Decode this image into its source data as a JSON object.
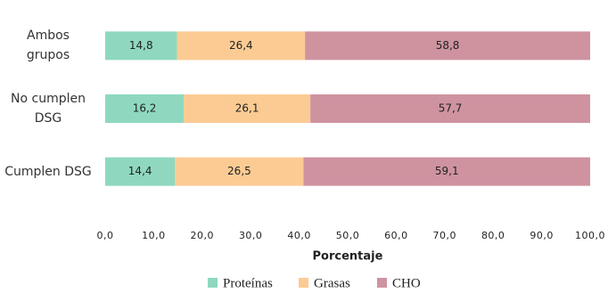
{
  "chart_data": {
    "type": "stacked-bar-horizontal",
    "x_label": "Porcentaje",
    "categories": [
      "Ambos grupos",
      "No cumplen DSG",
      "Cumplen DSG"
    ],
    "series": [
      {
        "name": "Proteínas",
        "color": "#8fd8bf",
        "values": [
          14.8,
          16.2,
          14.4
        ],
        "value_labels": [
          "14,8",
          "16,2",
          "14,4"
        ]
      },
      {
        "name": "Grasas",
        "color": "#fccb94",
        "values": [
          26.4,
          26.1,
          26.5
        ],
        "value_labels": [
          "26,4",
          "26,1",
          "26,5"
        ]
      },
      {
        "name": "CHO",
        "color": "#cf93a0",
        "values": [
          58.8,
          57.7,
          59.1
        ],
        "value_labels": [
          "58,8",
          "57,7",
          "59,1"
        ]
      }
    ],
    "xlim": [
      0,
      100
    ],
    "xticks": [
      {
        "value": 0,
        "label": "0,0"
      },
      {
        "value": 10,
        "label": "10,0"
      },
      {
        "value": 20,
        "label": "20,0"
      },
      {
        "value": 30,
        "label": "30,0"
      },
      {
        "value": 40,
        "label": "40,0"
      },
      {
        "value": 50,
        "label": "50,0"
      },
      {
        "value": 60,
        "label": "60,0"
      },
      {
        "value": 70,
        "label": "70,0"
      },
      {
        "value": 80,
        "label": "80,0"
      },
      {
        "value": 90,
        "label": "90,0"
      },
      {
        "value": 100,
        "label": "100,0"
      }
    ],
    "legend": "bottom"
  }
}
